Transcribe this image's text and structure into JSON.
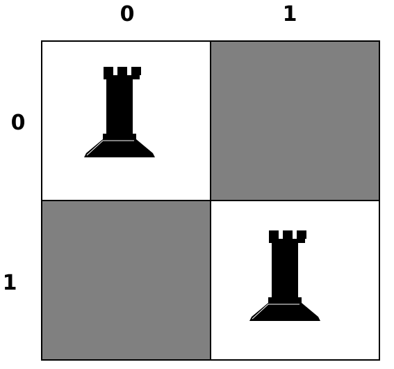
{
  "board": {
    "columns": [
      "0",
      "1"
    ],
    "rows": [
      "0",
      "1"
    ],
    "colors": {
      "light": "#ffffff",
      "dark": "#808080",
      "grid": "#000000",
      "piece": "#000000"
    },
    "squares": [
      {
        "row": 0,
        "col": 0,
        "shade": "light",
        "piece": "rook-icon"
      },
      {
        "row": 0,
        "col": 1,
        "shade": "dark",
        "piece": ""
      },
      {
        "row": 1,
        "col": 0,
        "shade": "dark",
        "piece": ""
      },
      {
        "row": 1,
        "col": 1,
        "shade": "light",
        "piece": "rook-icon"
      }
    ]
  }
}
